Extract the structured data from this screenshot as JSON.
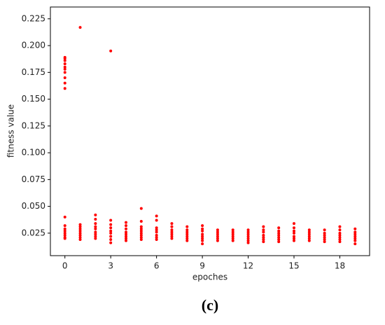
{
  "chart_data": {
    "type": "scatter",
    "x_label": "epoches",
    "y_label": "fitness value",
    "caption": "(c)",
    "color": "#ff0000",
    "x": [
      0,
      0,
      0,
      0,
      0,
      0,
      0,
      0,
      0,
      0,
      0,
      0,
      0,
      0,
      0,
      0,
      0,
      0,
      1,
      1,
      1,
      1,
      1,
      1,
      1,
      1,
      1,
      2,
      2,
      2,
      2,
      2,
      2,
      2,
      2,
      2,
      3,
      3,
      3,
      3,
      3,
      3,
      3,
      3,
      3,
      4,
      4,
      4,
      4,
      4,
      4,
      4,
      4,
      5,
      5,
      5,
      5,
      5,
      5,
      5,
      5,
      5,
      6,
      6,
      6,
      6,
      6,
      6,
      6,
      6,
      7,
      7,
      7,
      7,
      7,
      7,
      7,
      8,
      8,
      8,
      8,
      8,
      8,
      8,
      9,
      9,
      9,
      9,
      9,
      9,
      9,
      9,
      10,
      10,
      10,
      10,
      10,
      10,
      11,
      11,
      11,
      11,
      11,
      11,
      12,
      12,
      12,
      12,
      12,
      12,
      12,
      13,
      13,
      13,
      13,
      13,
      13,
      13,
      14,
      14,
      14,
      14,
      14,
      14,
      14,
      15,
      15,
      15,
      15,
      15,
      15,
      15,
      16,
      16,
      16,
      16,
      16,
      16,
      17,
      17,
      17,
      17,
      17,
      17,
      18,
      18,
      18,
      18,
      18,
      18,
      18,
      19,
      19,
      19,
      19,
      19,
      19,
      19
    ],
    "values": [
      0.16,
      0.165,
      0.17,
      0.175,
      0.178,
      0.18,
      0.183,
      0.186,
      0.188,
      0.189,
      0.04,
      0.032,
      0.029,
      0.027,
      0.025,
      0.023,
      0.021,
      0.02,
      0.217,
      0.033,
      0.031,
      0.029,
      0.027,
      0.025,
      0.023,
      0.021,
      0.019,
      0.042,
      0.038,
      0.034,
      0.031,
      0.029,
      0.026,
      0.024,
      0.022,
      0.02,
      0.195,
      0.037,
      0.033,
      0.03,
      0.027,
      0.025,
      0.022,
      0.019,
      0.016,
      0.035,
      0.032,
      0.029,
      0.026,
      0.024,
      0.022,
      0.02,
      0.018,
      0.048,
      0.036,
      0.031,
      0.029,
      0.027,
      0.025,
      0.023,
      0.021,
      0.019,
      0.041,
      0.037,
      0.03,
      0.028,
      0.026,
      0.023,
      0.021,
      0.019,
      0.034,
      0.031,
      0.028,
      0.026,
      0.024,
      0.022,
      0.02,
      0.031,
      0.028,
      0.026,
      0.024,
      0.022,
      0.02,
      0.018,
      0.032,
      0.029,
      0.027,
      0.024,
      0.022,
      0.02,
      0.018,
      0.015,
      0.028,
      0.026,
      0.024,
      0.022,
      0.02,
      0.018,
      0.028,
      0.026,
      0.024,
      0.022,
      0.02,
      0.018,
      0.028,
      0.026,
      0.024,
      0.022,
      0.02,
      0.018,
      0.016,
      0.031,
      0.028,
      0.026,
      0.023,
      0.021,
      0.019,
      0.017,
      0.03,
      0.027,
      0.025,
      0.023,
      0.021,
      0.019,
      0.017,
      0.034,
      0.03,
      0.027,
      0.025,
      0.022,
      0.02,
      0.018,
      0.028,
      0.026,
      0.024,
      0.022,
      0.02,
      0.018,
      0.028,
      0.025,
      0.023,
      0.021,
      0.019,
      0.017,
      0.031,
      0.028,
      0.025,
      0.023,
      0.021,
      0.019,
      0.017,
      0.029,
      0.026,
      0.024,
      0.022,
      0.02,
      0.018,
      0.015
    ],
    "xlim": [
      -0.95,
      19.95
    ],
    "xticks": [
      0,
      3,
      6,
      9,
      12,
      15,
      18
    ],
    "ylim": [
      0.004,
      0.236
    ],
    "yticks": [
      0.025,
      {
        "value": 0.05,
        "label": "0.050"
      },
      0.075,
      {
        "value": 0.1,
        "label": "0.100"
      },
      0.125,
      {
        "value": 0.15,
        "label": "0.150"
      },
      0.175,
      {
        "value": 0.2,
        "label": "0.200"
      },
      0.225
    ]
  }
}
